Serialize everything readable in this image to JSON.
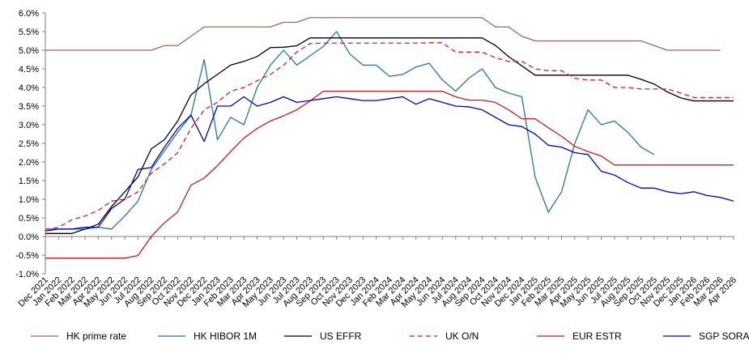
{
  "chart_data": {
    "type": "line",
    "title": "",
    "xlabel": "",
    "ylabel": "",
    "ylim": [
      -1.0,
      6.0
    ],
    "yticks": [
      "-1.0%",
      "-0.5%",
      "0.0%",
      "0.5%",
      "1.0%",
      "1.5%",
      "2.0%",
      "2.5%",
      "3.0%",
      "3.5%",
      "4.0%",
      "4.5%",
      "5.0%",
      "5.5%",
      "6.0%"
    ],
    "grid": false,
    "legend_position": "bottom",
    "x": [
      "Dec 2021",
      "Jan 2022",
      "Feb 2022",
      "Mar 2022",
      "Apr 2022",
      "May 2022",
      "Jun 2022",
      "Jul 2022",
      "Aug 2022",
      "Sep 2022",
      "Oct 2022",
      "Nov 2022",
      "Dec 2022",
      "Jan 2023",
      "Feb 2023",
      "Mar 2023",
      "Apr 2023",
      "May 2023",
      "Jun 2023",
      "Jul 2023",
      "Aug 2023",
      "Sep 2023",
      "Oct 2023",
      "Nov 2023",
      "Dec 2023",
      "Jan 2024",
      "Feb 2024",
      "Mar 2024",
      "Apr 2024",
      "May 2024",
      "Jun 2024",
      "Jul 2024",
      "Aug 2024",
      "Sep 2024",
      "Oct 2024",
      "Nov 2024",
      "Dec 2024",
      "Jan 2025",
      "Feb 2025",
      "Mar 2025",
      "Apr 2025",
      "May 2025",
      "Jun 2025",
      "Jul 2025",
      "Aug 2025",
      "Sep 2025",
      "Oct 2025",
      "Nov 2025",
      "Dec 2025",
      "Jan 2026",
      "Feb 2026",
      "Mar 2026",
      "Apr 2026"
    ],
    "series": [
      {
        "name": "HK prime rate",
        "color": "#a0665c",
        "dash": false,
        "values": [
          5.0,
          5.0,
          5.0,
          5.0,
          5.0,
          5.0,
          5.0,
          5.0,
          5.0,
          5.125,
          5.125,
          5.375,
          5.625,
          5.625,
          5.625,
          5.625,
          5.625,
          5.625,
          5.75,
          5.75,
          5.875,
          5.875,
          5.875,
          5.875,
          5.875,
          5.875,
          5.875,
          5.875,
          5.875,
          5.875,
          5.875,
          5.875,
          5.875,
          5.875,
          5.625,
          5.625,
          5.375,
          5.25,
          5.25,
          5.25,
          5.25,
          5.25,
          5.25,
          5.25,
          5.25,
          5.25,
          5.125,
          5.0,
          5.0,
          5.0,
          5.0,
          5.0,
          null
        ]
      },
      {
        "name": "HK HIBOR 1M",
        "color": "#1f77b4",
        "dash": false,
        "values": [
          0.2,
          0.2,
          0.2,
          0.2,
          0.25,
          0.2,
          0.55,
          0.95,
          1.8,
          2.3,
          2.8,
          3.25,
          4.75,
          2.6,
          3.2,
          3.0,
          4.0,
          4.6,
          5.0,
          4.6,
          4.85,
          5.1,
          5.5,
          4.9,
          4.6,
          4.6,
          4.3,
          4.35,
          4.55,
          4.65,
          4.2,
          3.9,
          4.25,
          4.5,
          4.0,
          3.85,
          3.75,
          1.6,
          0.65,
          1.2,
          2.5,
          3.4,
          3.0,
          3.1,
          2.8,
          2.4,
          2.2,
          null,
          null,
          null,
          null,
          null,
          null
        ]
      },
      {
        "name": "US EFFR",
        "color": "#000000",
        "dash": false,
        "values": [
          0.08,
          0.08,
          0.08,
          0.2,
          0.33,
          0.8,
          1.2,
          1.6,
          2.35,
          2.6,
          3.1,
          3.8,
          4.1,
          4.35,
          4.6,
          4.7,
          4.83,
          5.07,
          5.08,
          5.12,
          5.33,
          5.33,
          5.33,
          5.33,
          5.33,
          5.33,
          5.33,
          5.33,
          5.33,
          5.33,
          5.33,
          5.33,
          5.33,
          5.33,
          5.13,
          4.83,
          4.58,
          4.33,
          4.33,
          4.33,
          4.33,
          4.33,
          4.33,
          4.33,
          4.33,
          4.22,
          4.09,
          3.88,
          3.72,
          3.64,
          3.64,
          3.64,
          3.64
        ]
      },
      {
        "name": "UK O/N",
        "color": "#e31a1c",
        "dash": true,
        "values": [
          0.19,
          0.25,
          0.45,
          0.55,
          0.7,
          0.95,
          1.0,
          1.2,
          1.7,
          1.95,
          2.25,
          2.9,
          3.4,
          3.6,
          3.9,
          4.0,
          4.18,
          4.35,
          4.6,
          4.95,
          5.18,
          5.19,
          5.19,
          5.19,
          5.19,
          5.19,
          5.19,
          5.19,
          5.19,
          5.2,
          5.2,
          4.95,
          4.95,
          4.95,
          4.8,
          4.7,
          4.7,
          4.5,
          4.45,
          4.45,
          4.25,
          4.2,
          4.2,
          4.0,
          4.0,
          3.96,
          3.96,
          3.96,
          3.85,
          3.73,
          3.73,
          3.73,
          3.73
        ]
      },
      {
        "name": "EUR ESTR",
        "color": "#d7191c",
        "dash": false,
        "values": [
          -0.58,
          -0.58,
          -0.58,
          -0.58,
          -0.58,
          -0.58,
          -0.58,
          -0.51,
          0.0,
          0.37,
          0.66,
          1.38,
          1.57,
          1.9,
          2.28,
          2.64,
          2.9,
          3.1,
          3.24,
          3.4,
          3.64,
          3.9,
          3.9,
          3.9,
          3.9,
          3.9,
          3.9,
          3.9,
          3.9,
          3.9,
          3.9,
          3.75,
          3.66,
          3.66,
          3.6,
          3.4,
          3.16,
          3.16,
          2.92,
          2.69,
          2.42,
          2.28,
          2.16,
          1.92,
          1.92,
          1.92,
          1.92,
          1.92,
          1.92,
          1.92,
          1.92,
          1.92,
          1.92
        ]
      },
      {
        "name": "SGP SORA",
        "color": "#0000cc",
        "dash": false,
        "values": [
          0.15,
          0.2,
          0.2,
          0.25,
          0.25,
          0.75,
          1.0,
          1.8,
          1.85,
          2.4,
          2.9,
          3.26,
          2.55,
          3.5,
          3.5,
          3.75,
          3.5,
          3.6,
          3.75,
          3.6,
          3.65,
          3.7,
          3.75,
          3.7,
          3.65,
          3.65,
          3.7,
          3.75,
          3.55,
          3.7,
          3.6,
          3.5,
          3.48,
          3.4,
          3.2,
          3.0,
          2.95,
          2.75,
          2.45,
          2.4,
          2.25,
          2.2,
          1.75,
          1.65,
          1.45,
          1.3,
          1.3,
          1.2,
          1.15,
          1.2,
          1.1,
          1.05,
          0.95
        ]
      }
    ]
  }
}
